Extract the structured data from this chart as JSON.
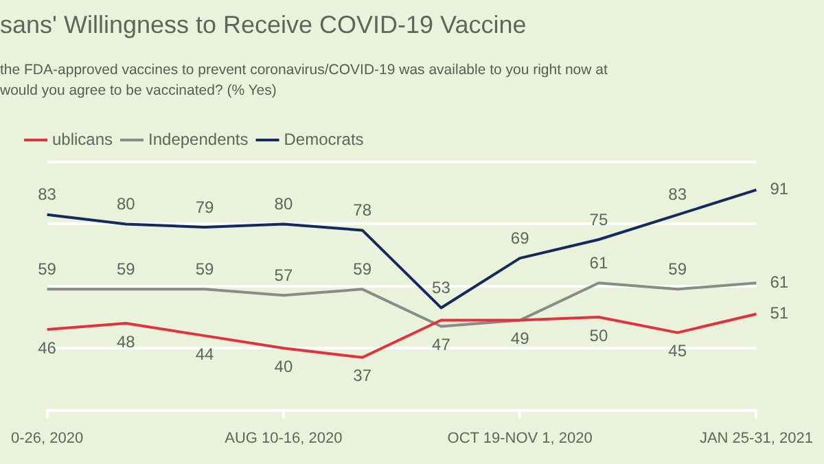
{
  "chart_data": {
    "type": "line",
    "title": "sans' Willingness to Receive COVID-19 Vaccine",
    "subtitle": "the FDA-approved vaccines to prevent coronavirus/COVID-19 was available to you right now at\nwould you agree to be vaccinated? (% Yes)",
    "categories": [
      "0-26, 2020",
      null,
      null,
      "AUG 10-16, 2020",
      null,
      null,
      "OCT 19-NOV 1, 2020",
      null,
      null,
      "JAN 25-31, 2021"
    ],
    "series": [
      {
        "name": "ublicans",
        "color": "#e0333c",
        "values": [
          46,
          48,
          44,
          40,
          37,
          49,
          49,
          50,
          45,
          51
        ],
        "value_labels": [
          "46",
          "48",
          "44",
          "40",
          "37",
          null,
          "49",
          "50",
          "45",
          "51"
        ]
      },
      {
        "name": "Independents",
        "color": "#878c87",
        "values": [
          59,
          59,
          59,
          57,
          59,
          47,
          49,
          61,
          59,
          61
        ],
        "value_labels": [
          "59",
          "59",
          "59",
          "57",
          "59",
          "47",
          null,
          "61",
          "59",
          "61"
        ]
      },
      {
        "name": "Democrats",
        "color": "#132a5e",
        "values": [
          83,
          80,
          79,
          80,
          78,
          53,
          69,
          75,
          83,
          91
        ],
        "value_labels": [
          "83",
          "80",
          "79",
          "80",
          "78",
          "53",
          "69",
          "75",
          "83",
          "91"
        ]
      }
    ],
    "ylim": [
      20,
      100
    ],
    "yticks": [
      20,
      40,
      60,
      80,
      100
    ],
    "grid": "y",
    "tick_labels": "x",
    "legend": "top left",
    "marker": "none"
  }
}
